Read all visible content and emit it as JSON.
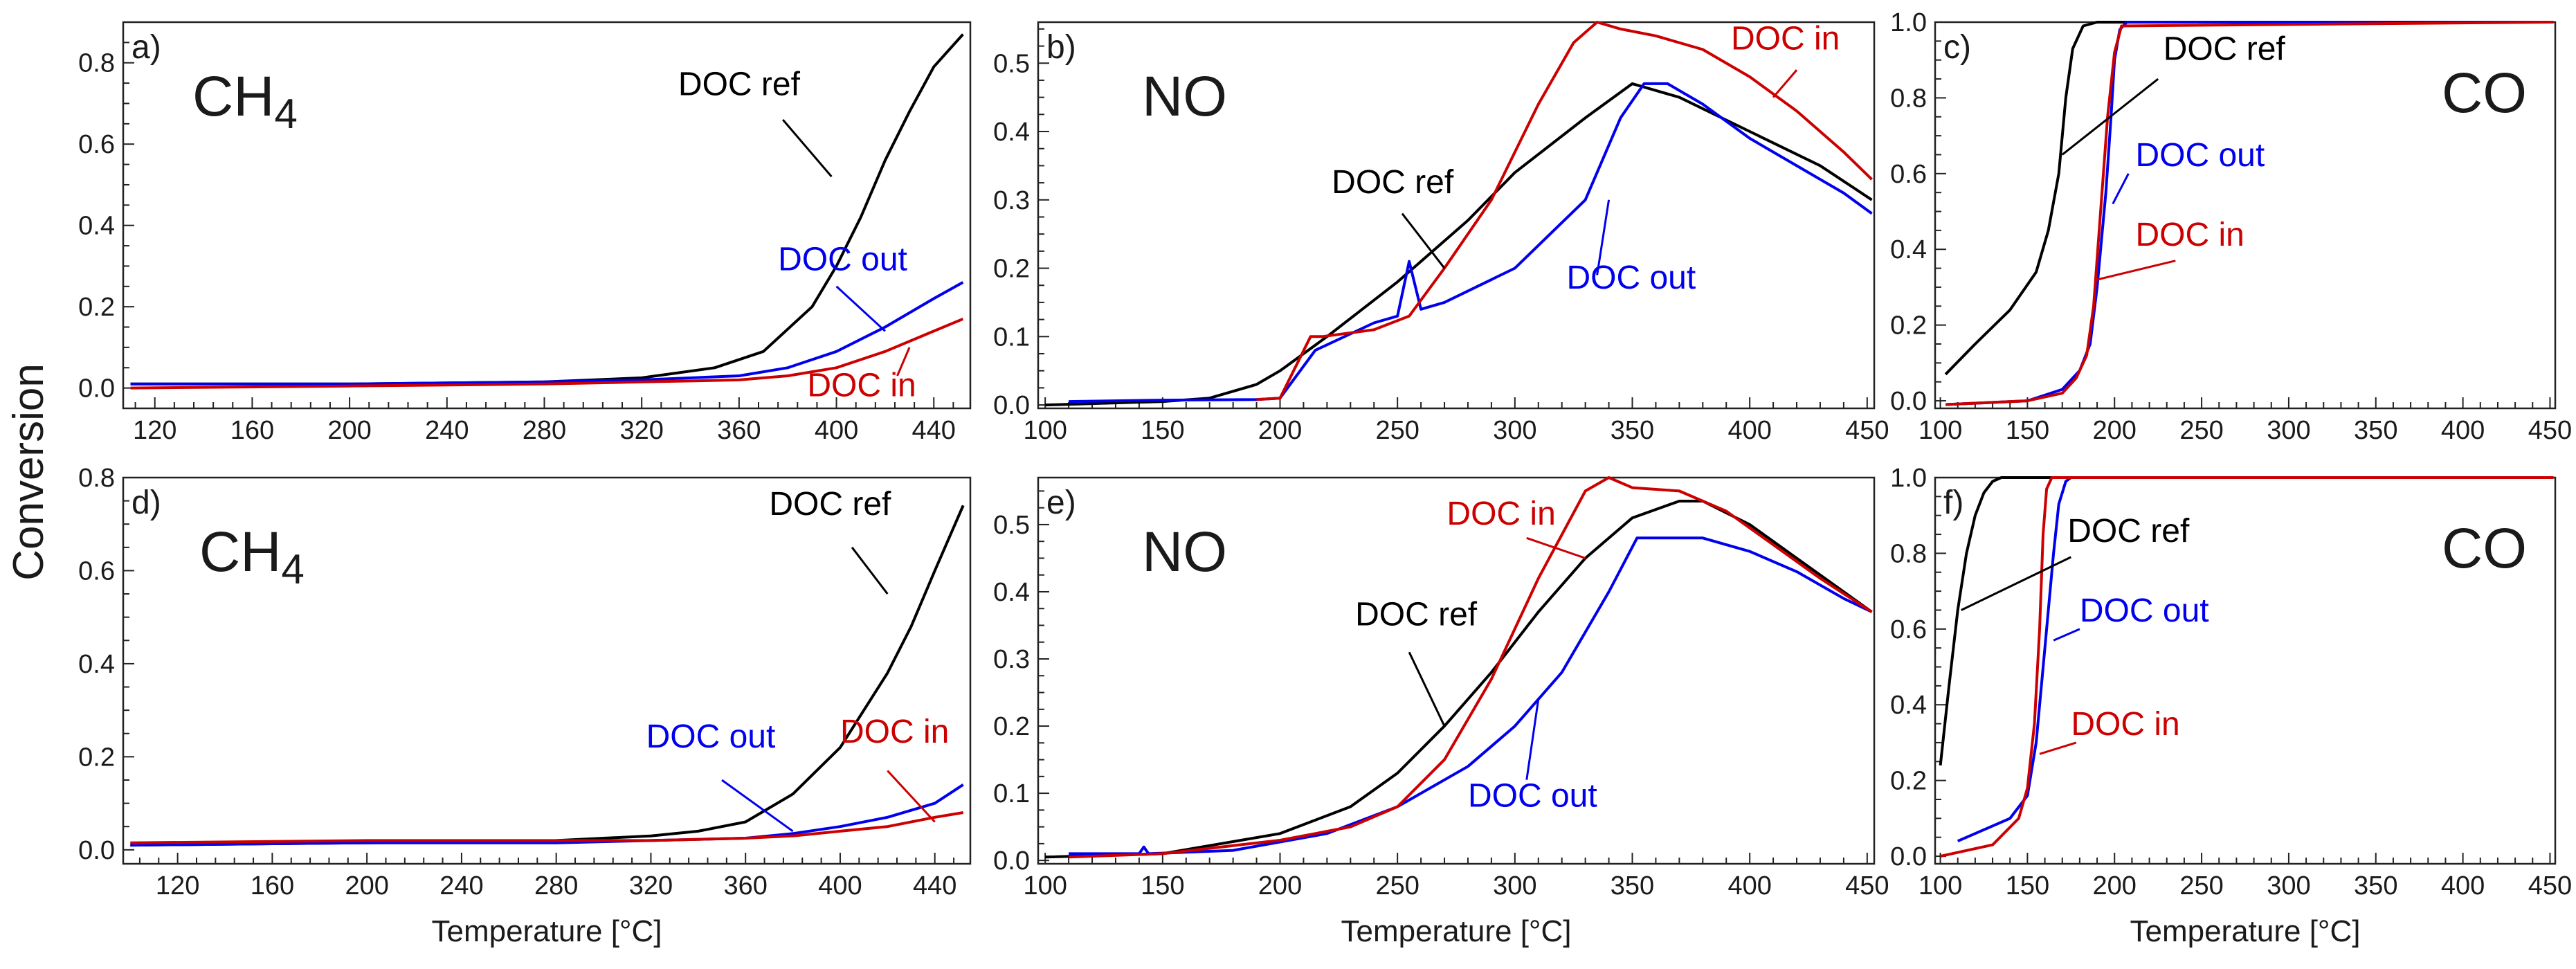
{
  "figure": {
    "ylabel": "Conversion",
    "xlabel": "Temperature [°C]"
  },
  "colors": {
    "DOC ref": "#000000",
    "DOC out": "#0000ee",
    "DOC in": "#cc0000"
  },
  "chart_data": [
    {
      "id": "a",
      "type": "line",
      "panel_label": "a)",
      "title": "CH4",
      "title_main": "CH",
      "title_sub": "4",
      "xlim": [
        107,
        455
      ],
      "ylim": [
        -0.05,
        0.9
      ],
      "xticks": [
        120,
        160,
        200,
        240,
        280,
        320,
        360,
        400,
        440
      ],
      "yticks": [
        0.0,
        0.2,
        0.4,
        0.6,
        0.8
      ],
      "xlabel": "",
      "series": [
        {
          "name": "DOC ref",
          "x": [
            110,
            200,
            280,
            320,
            350,
            370,
            390,
            400,
            410,
            420,
            430,
            440,
            452
          ],
          "y": [
            0.01,
            0.01,
            0.015,
            0.025,
            0.05,
            0.09,
            0.2,
            0.3,
            0.42,
            0.56,
            0.68,
            0.79,
            0.87
          ]
        },
        {
          "name": "DOC out",
          "x": [
            110,
            200,
            280,
            320,
            360,
            380,
            400,
            420,
            440,
            452
          ],
          "y": [
            0.01,
            0.01,
            0.015,
            0.02,
            0.03,
            0.05,
            0.09,
            0.15,
            0.22,
            0.26
          ]
        },
        {
          "name": "DOC in",
          "x": [
            110,
            200,
            280,
            320,
            360,
            380,
            400,
            420,
            440,
            452
          ],
          "y": [
            0.0,
            0.005,
            0.01,
            0.015,
            0.02,
            0.03,
            0.05,
            0.09,
            0.14,
            0.17
          ]
        }
      ],
      "annotations": [
        {
          "series": "DOC ref",
          "text": "DOC ref",
          "at": [
            335,
            0.72
          ],
          "anchor": "start",
          "line_to": [
            398,
            0.52
          ],
          "line_from": [
            378,
            0.66
          ]
        },
        {
          "series": "DOC out",
          "text": "DOC out",
          "at": [
            376,
            0.29
          ],
          "anchor": "start",
          "line_to": [
            420,
            0.14
          ],
          "line_from": [
            400,
            0.25
          ]
        },
        {
          "series": "DOC in",
          "text": "DOC in",
          "at": [
            388,
            -0.02
          ],
          "anchor": "start",
          "line_to": [
            430,
            0.1
          ],
          "line_from": [
            425,
            0.03
          ]
        }
      ]
    },
    {
      "id": "b",
      "type": "line",
      "panel_label": "b)",
      "title": "NO",
      "title_main": "NO",
      "title_sub": "",
      "xlim": [
        97,
        453
      ],
      "ylim": [
        -0.005,
        0.56
      ],
      "xticks": [
        100,
        150,
        200,
        250,
        300,
        350,
        400,
        450
      ],
      "yticks": [
        0.0,
        0.1,
        0.2,
        0.3,
        0.4,
        0.5
      ],
      "xlabel": "",
      "series": [
        {
          "name": "DOC ref",
          "x": [
            100,
            150,
            170,
            190,
            200,
            220,
            250,
            280,
            300,
            330,
            350,
            370,
            400,
            430,
            452
          ],
          "y": [
            0.0,
            0.005,
            0.01,
            0.03,
            0.05,
            0.1,
            0.18,
            0.27,
            0.34,
            0.42,
            0.47,
            0.45,
            0.4,
            0.35,
            0.3
          ]
        },
        {
          "name": "DOC out",
          "x": [
            110,
            150,
            190,
            200,
            215,
            240,
            250,
            255,
            260,
            270,
            300,
            330,
            345,
            355,
            365,
            380,
            400,
            420,
            440,
            452
          ],
          "y": [
            0.005,
            0.007,
            0.008,
            0.01,
            0.08,
            0.12,
            0.13,
            0.21,
            0.14,
            0.15,
            0.2,
            0.3,
            0.42,
            0.47,
            0.47,
            0.44,
            0.39,
            0.35,
            0.31,
            0.28
          ]
        },
        {
          "name": "DOC in",
          "x": [
            190,
            200,
            213,
            218,
            240,
            255,
            270,
            290,
            310,
            325,
            335,
            345,
            360,
            380,
            400,
            420,
            440,
            452
          ],
          "y": [
            0.008,
            0.01,
            0.1,
            0.1,
            0.11,
            0.13,
            0.2,
            0.3,
            0.44,
            0.53,
            0.56,
            0.55,
            0.54,
            0.52,
            0.48,
            0.43,
            0.37,
            0.33
          ]
        }
      ],
      "annotations": [
        {
          "series": "DOC ref",
          "text": "DOC ref",
          "at": [
            222,
            0.31
          ],
          "anchor": "start",
          "line_to": [
            270,
            0.2
          ],
          "line_from": [
            252,
            0.28
          ]
        },
        {
          "series": "DOC out",
          "text": "DOC out",
          "at": [
            322,
            0.17
          ],
          "anchor": "start",
          "line_to": [
            340,
            0.3
          ],
          "line_from": [
            335,
            0.19
          ]
        },
        {
          "series": "DOC in",
          "text": "DOC in",
          "at": [
            392,
            0.52
          ],
          "anchor": "start",
          "line_to": [
            410,
            0.45
          ],
          "line_from": [
            420,
            0.49
          ]
        }
      ]
    },
    {
      "id": "c",
      "type": "line",
      "panel_label": "c)",
      "title": "CO",
      "title_main": "CO",
      "title_sub": "",
      "xlim": [
        97,
        453
      ],
      "ylim": [
        -0.02,
        1.0
      ],
      "xticks": [
        100,
        150,
        200,
        250,
        300,
        350,
        400,
        450
      ],
      "yticks": [
        0.0,
        0.2,
        0.4,
        0.6,
        0.8,
        1.0
      ],
      "xlabel": "",
      "series": [
        {
          "name": "DOC ref",
          "x": [
            103,
            120,
            140,
            155,
            162,
            168,
            172,
            176,
            182,
            190,
            200,
            452
          ],
          "y": [
            0.07,
            0.15,
            0.24,
            0.34,
            0.45,
            0.6,
            0.8,
            0.93,
            0.99,
            1.0,
            1.0,
            1.0
          ]
        },
        {
          "name": "DOC out",
          "x": [
            103,
            150,
            170,
            180,
            186,
            190,
            195,
            198,
            200,
            203,
            207,
            452
          ],
          "y": [
            -0.01,
            0.0,
            0.03,
            0.08,
            0.15,
            0.3,
            0.55,
            0.75,
            0.9,
            0.98,
            1.0,
            1.0
          ]
        },
        {
          "name": "DOC in",
          "x": [
            103,
            150,
            170,
            178,
            184,
            188,
            192,
            196,
            200,
            204,
            452
          ],
          "y": [
            -0.01,
            0.0,
            0.02,
            0.06,
            0.12,
            0.25,
            0.5,
            0.75,
            0.92,
            0.99,
            1.0
          ]
        }
      ],
      "annotations": [
        {
          "series": "DOC ref",
          "text": "DOC ref",
          "at": [
            228,
            0.9
          ],
          "anchor": "start",
          "line_to": [
            170,
            0.65
          ],
          "line_from": [
            225,
            0.85
          ]
        },
        {
          "series": "DOC out",
          "text": "DOC out",
          "at": [
            212,
            0.62
          ],
          "anchor": "start",
          "line_to": [
            199,
            0.52
          ],
          "line_from": [
            208,
            0.6
          ]
        },
        {
          "series": "DOC in",
          "text": "DOC in",
          "at": [
            212,
            0.41
          ],
          "anchor": "start",
          "line_to": [
            190,
            0.32
          ],
          "line_from": [
            235,
            0.37
          ]
        }
      ]
    },
    {
      "id": "d",
      "type": "line",
      "panel_label": "d)",
      "title": "CH4",
      "title_main": "CH",
      "title_sub": "4",
      "xlim": [
        97,
        455
      ],
      "ylim": [
        -0.03,
        0.8
      ],
      "xticks": [
        120,
        160,
        200,
        240,
        280,
        320,
        360,
        400,
        440
      ],
      "yticks": [
        0.0,
        0.2,
        0.4,
        0.6,
        0.8
      ],
      "xlabel": "Temperature [°C]",
      "series": [
        {
          "name": "DOC ref",
          "x": [
            100,
            200,
            280,
            320,
            340,
            360,
            380,
            400,
            420,
            430,
            440,
            452
          ],
          "y": [
            0.01,
            0.015,
            0.02,
            0.03,
            0.04,
            0.06,
            0.12,
            0.22,
            0.38,
            0.48,
            0.6,
            0.74
          ]
        },
        {
          "name": "DOC out",
          "x": [
            100,
            200,
            280,
            320,
            360,
            380,
            400,
            420,
            440,
            452
          ],
          "y": [
            0.01,
            0.015,
            0.015,
            0.02,
            0.025,
            0.035,
            0.05,
            0.07,
            0.1,
            0.14
          ]
        },
        {
          "name": "DOC in",
          "x": [
            100,
            200,
            280,
            320,
            360,
            380,
            400,
            420,
            440,
            452
          ],
          "y": [
            0.015,
            0.02,
            0.02,
            0.02,
            0.025,
            0.03,
            0.04,
            0.05,
            0.07,
            0.08
          ]
        }
      ],
      "annotations": [
        {
          "series": "DOC ref",
          "text": "DOC ref",
          "at": [
            370,
            0.72
          ],
          "anchor": "start",
          "line_to": [
            420,
            0.55
          ],
          "line_from": [
            405,
            0.65
          ]
        },
        {
          "series": "DOC out",
          "text": "DOC out",
          "at": [
            318,
            0.22
          ],
          "anchor": "start",
          "line_to": [
            380,
            0.04
          ],
          "line_from": [
            350,
            0.15
          ]
        },
        {
          "series": "DOC in",
          "text": "DOC in",
          "at": [
            400,
            0.23
          ],
          "anchor": "start",
          "line_to": [
            440,
            0.06
          ],
          "line_from": [
            420,
            0.17
          ]
        }
      ]
    },
    {
      "id": "e",
      "type": "line",
      "panel_label": "e)",
      "title": "NO",
      "title_main": "NO",
      "title_sub": "",
      "xlim": [
        97,
        453
      ],
      "ylim": [
        -0.005,
        0.57
      ],
      "xticks": [
        100,
        150,
        200,
        250,
        300,
        350,
        400,
        450
      ],
      "yticks": [
        0.0,
        0.1,
        0.2,
        0.3,
        0.4,
        0.5
      ],
      "xlabel": "Temperature [°C]",
      "series": [
        {
          "name": "DOC ref",
          "x": [
            100,
            150,
            200,
            230,
            250,
            270,
            290,
            310,
            330,
            350,
            370,
            380,
            400,
            420,
            440,
            452
          ],
          "y": [
            0.005,
            0.01,
            0.04,
            0.08,
            0.13,
            0.2,
            0.28,
            0.37,
            0.45,
            0.51,
            0.535,
            0.535,
            0.5,
            0.45,
            0.4,
            0.37
          ]
        },
        {
          "name": "DOC out",
          "x": [
            110,
            140,
            142,
            144,
            180,
            220,
            250,
            280,
            300,
            320,
            340,
            352,
            360,
            380,
            400,
            420,
            440,
            452
          ],
          "y": [
            0.01,
            0.01,
            0.02,
            0.01,
            0.015,
            0.04,
            0.08,
            0.14,
            0.2,
            0.28,
            0.4,
            0.48,
            0.48,
            0.48,
            0.46,
            0.43,
            0.39,
            0.37
          ]
        },
        {
          "name": "DOC in",
          "x": [
            110,
            150,
            200,
            230,
            250,
            270,
            290,
            310,
            330,
            340,
            350,
            370,
            390,
            410,
            430,
            452
          ],
          "y": [
            0.005,
            0.01,
            0.03,
            0.05,
            0.08,
            0.15,
            0.27,
            0.42,
            0.55,
            0.57,
            0.555,
            0.55,
            0.52,
            0.47,
            0.42,
            0.37
          ]
        }
      ],
      "annotations": [
        {
          "series": "DOC ref",
          "text": "DOC ref",
          "at": [
            232,
            0.35
          ],
          "anchor": "start",
          "line_to": [
            270,
            0.2
          ],
          "line_from": [
            255,
            0.31
          ]
        },
        {
          "series": "DOC out",
          "text": "DOC out",
          "at": [
            280,
            0.08
          ],
          "anchor": "start",
          "line_to": [
            310,
            0.24
          ],
          "line_from": [
            305,
            0.12
          ]
        },
        {
          "series": "DOC in",
          "text": "DOC in",
          "at": [
            271,
            0.5
          ],
          "anchor": "start",
          "line_to": [
            330,
            0.45
          ],
          "line_from": [
            305,
            0.48
          ]
        }
      ]
    },
    {
      "id": "f",
      "type": "line",
      "panel_label": "f)",
      "title": "CO",
      "title_main": "CO",
      "title_sub": "",
      "xlim": [
        97,
        453
      ],
      "ylim": [
        -0.02,
        1.0
      ],
      "xticks": [
        100,
        150,
        200,
        250,
        300,
        350,
        400,
        450
      ],
      "yticks": [
        0.0,
        0.2,
        0.4,
        0.6,
        0.8,
        1.0
      ],
      "xlabel": "Temperature [°C]",
      "series": [
        {
          "name": "DOC ref",
          "x": [
            100,
            105,
            110,
            115,
            120,
            125,
            130,
            135,
            140,
            150,
            452
          ],
          "y": [
            0.24,
            0.45,
            0.65,
            0.8,
            0.9,
            0.96,
            0.99,
            1.0,
            1.0,
            1.0,
            1.0
          ]
        },
        {
          "name": "DOC out",
          "x": [
            110,
            140,
            150,
            155,
            160,
            165,
            168,
            172,
            175,
            180,
            452
          ],
          "y": [
            0.04,
            0.1,
            0.16,
            0.3,
            0.55,
            0.8,
            0.93,
            0.99,
            1.0,
            1.0,
            1.0
          ]
        },
        {
          "name": "DOC in",
          "x": [
            100,
            130,
            145,
            150,
            154,
            157,
            159,
            161,
            164,
            170,
            452
          ],
          "y": [
            0.0,
            0.03,
            0.1,
            0.18,
            0.35,
            0.6,
            0.85,
            0.97,
            1.0,
            1.0,
            1.0
          ]
        }
      ],
      "annotations": [
        {
          "series": "DOC ref",
          "text": "DOC ref",
          "at": [
            173,
            0.83
          ],
          "anchor": "start",
          "line_to": [
            112,
            0.65
          ],
          "line_from": [
            175,
            0.79
          ]
        },
        {
          "series": "DOC out",
          "text": "DOC out",
          "at": [
            180,
            0.62
          ],
          "anchor": "start",
          "line_to": [
            165,
            0.57
          ],
          "line_from": [
            180,
            0.6
          ]
        },
        {
          "series": "DOC in",
          "text": "DOC in",
          "at": [
            175,
            0.32
          ],
          "anchor": "start",
          "line_to": [
            157,
            0.27
          ],
          "line_from": [
            178,
            0.3
          ]
        }
      ]
    }
  ]
}
